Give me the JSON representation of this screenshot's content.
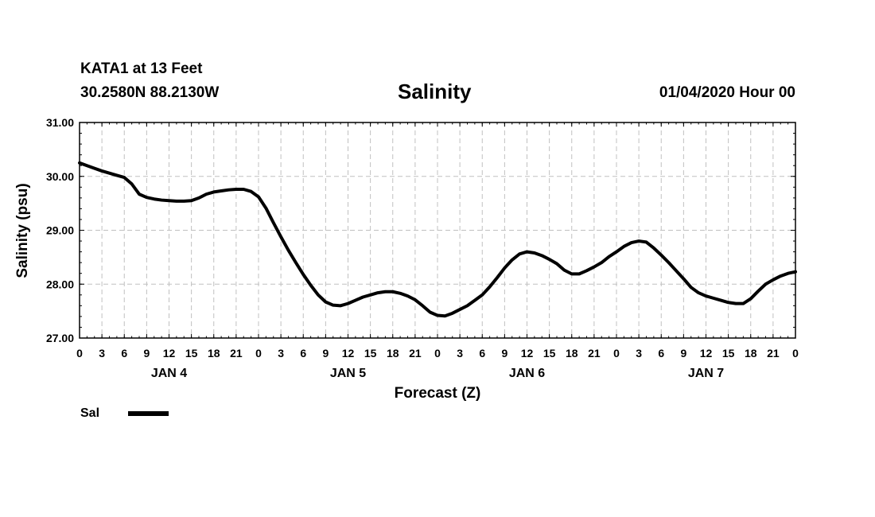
{
  "header": {
    "station": "KATA1 at 13 Feet",
    "coords": "30.2580N 88.2130W",
    "title": "Salinity",
    "datetime": "01/04/2020 Hour 00"
  },
  "legend": {
    "label": "Sal"
  },
  "chart_data": {
    "type": "line",
    "title": "Salinity",
    "xlabel": "Forecast (Z)",
    "ylabel": "Salinity (psu)",
    "ylim": [
      27.0,
      31.0
    ],
    "xlim": [
      0,
      96
    ],
    "grid": true,
    "y_tick_labels": [
      "27.00",
      "28.00",
      "29.00",
      "30.00",
      "31.00"
    ],
    "x_tick_labels": [
      "0",
      "3",
      "6",
      "9",
      "12",
      "15",
      "18",
      "21",
      "0",
      "3",
      "6",
      "9",
      "12",
      "15",
      "18",
      "21",
      "0",
      "3",
      "6",
      "9",
      "12",
      "15",
      "18",
      "21",
      "0",
      "3",
      "6",
      "9",
      "12",
      "15",
      "18",
      "21",
      "0"
    ],
    "day_labels": [
      {
        "label": "JAN 4",
        "hour": 12
      },
      {
        "label": "JAN 5",
        "hour": 36
      },
      {
        "label": "JAN 6",
        "hour": 60
      },
      {
        "label": "JAN 7",
        "hour": 84
      }
    ],
    "legend_position": "bottom-left",
    "series": [
      {
        "name": "Sal",
        "color": "#000000",
        "x": [
          0,
          1,
          2,
          3,
          4,
          5,
          6,
          7,
          8,
          9,
          10,
          11,
          12,
          13,
          14,
          15,
          16,
          17,
          18,
          19,
          20,
          21,
          22,
          23,
          24,
          25,
          26,
          27,
          28,
          29,
          30,
          31,
          32,
          33,
          34,
          35,
          36,
          37,
          38,
          39,
          40,
          41,
          42,
          43,
          44,
          45,
          46,
          47,
          48,
          49,
          50,
          51,
          52,
          53,
          54,
          55,
          56,
          57,
          58,
          59,
          60,
          61,
          62,
          63,
          64,
          65,
          66,
          67,
          68,
          69,
          70,
          71,
          72,
          73,
          74,
          75,
          76,
          77,
          78,
          79,
          80,
          81,
          82,
          83,
          84,
          85,
          86,
          87,
          88,
          89,
          90,
          91,
          92,
          93,
          94,
          95,
          96
        ],
        "y": [
          30.25,
          30.2,
          30.15,
          30.1,
          30.06,
          30.02,
          29.98,
          29.86,
          29.67,
          29.61,
          29.58,
          29.56,
          29.55,
          29.54,
          29.54,
          29.55,
          29.6,
          29.67,
          29.71,
          29.73,
          29.75,
          29.76,
          29.76,
          29.72,
          29.62,
          29.41,
          29.14,
          28.88,
          28.63,
          28.4,
          28.18,
          27.98,
          27.8,
          27.67,
          27.61,
          27.6,
          27.64,
          27.7,
          27.76,
          27.8,
          27.84,
          27.86,
          27.86,
          27.83,
          27.78,
          27.71,
          27.6,
          27.48,
          27.42,
          27.41,
          27.46,
          27.53,
          27.6,
          27.7,
          27.8,
          27.95,
          28.12,
          28.3,
          28.45,
          28.56,
          28.6,
          28.58,
          28.53,
          28.46,
          28.38,
          28.26,
          28.19,
          28.19,
          28.25,
          28.32,
          28.4,
          28.51,
          28.6,
          28.7,
          28.77,
          28.8,
          28.78,
          28.67,
          28.54,
          28.4,
          28.25,
          28.1,
          27.94,
          27.84,
          27.78,
          27.74,
          27.7,
          27.66,
          27.64,
          27.64,
          27.73,
          27.87,
          28.0,
          28.08,
          28.15,
          28.2,
          28.23
        ]
      }
    ]
  }
}
